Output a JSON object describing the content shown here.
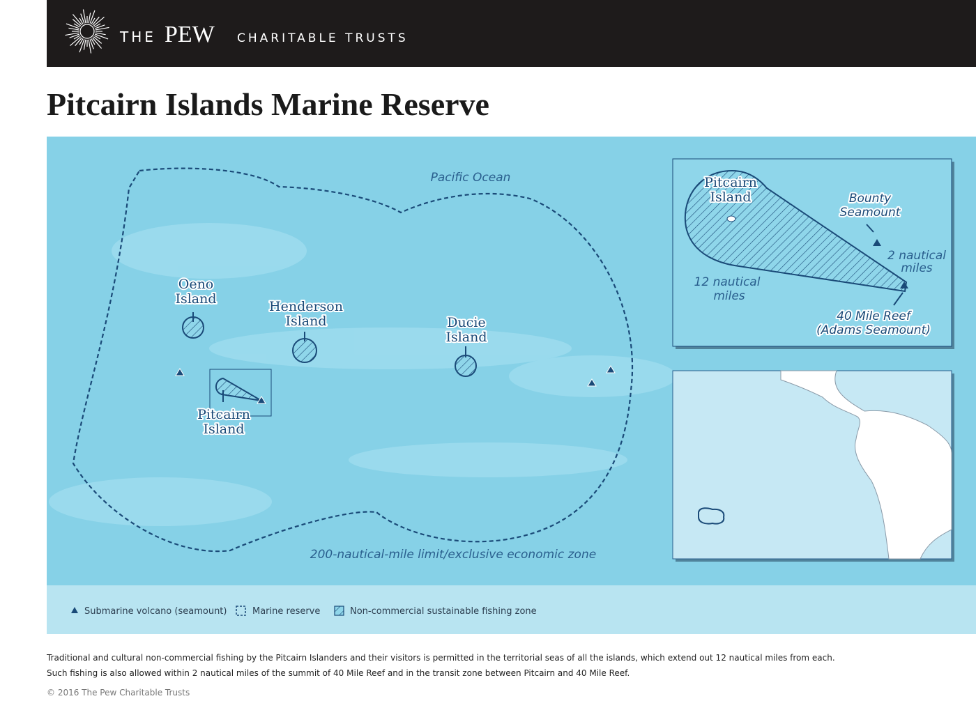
{
  "header": {
    "brand_the": "THE",
    "brand_pew": "PEW",
    "brand_rest": "CHARITABLE TRUSTS"
  },
  "title": "Pitcairn Islands Marine Reserve",
  "map": {
    "ocean_label": "Pacific Ocean",
    "eez_label": "200-nautical-mile limit/exclusive economic zone",
    "islands": [
      {
        "lines": [
          "Oeno",
          "Island"
        ]
      },
      {
        "lines": [
          "Henderson",
          "Island"
        ]
      },
      {
        "lines": [
          "Ducie",
          "Island"
        ]
      },
      {
        "lines": [
          "Pitcairn",
          "Island"
        ]
      }
    ]
  },
  "inset": {
    "pitcairn": [
      "Pitcairn",
      "Island"
    ],
    "bounty": [
      "Bounty",
      "Seamount"
    ],
    "two_nm": [
      "2 nautical",
      "miles"
    ],
    "twelve_nm": [
      "12 nautical",
      "miles"
    ],
    "reef": [
      "40 Mile Reef",
      "(Adams Seamount)"
    ]
  },
  "legend": [
    "Submarine volcano (seamount)",
    "Marine reserve",
    "Non-commercial sustainable fishing zone"
  ],
  "footnote": [
    "Traditional and cultural non-commercial fishing by the Pitcairn Islanders and their visitors is permitted in the territorial seas of all the islands, which extend out 12 nautical miles from each.",
    "Such fishing is also allowed within 2 nautical miles of the summit of 40 Mile Reef and in the transit zone between Pitcairn and 40 Mile Reef."
  ],
  "copyright": "© 2016 The Pew Charitable Trusts"
}
